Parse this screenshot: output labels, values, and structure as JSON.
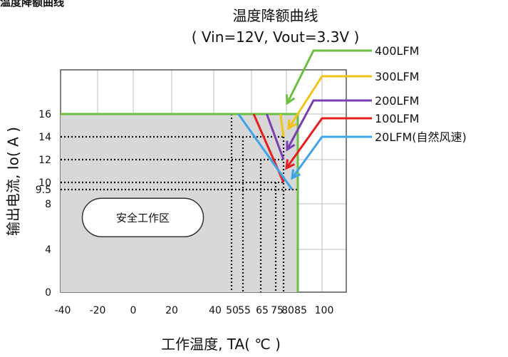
{
  "corner_text": "温度降额曲线",
  "chart_data": {
    "type": "line",
    "title": "温度降额曲线",
    "subtitle": "( Vin=12V, Vout=3.3V )",
    "xlabel": "工作温度, TA( ℃ )",
    "ylabel": "输出电流, Io( A )",
    "x_ticks": [
      -40,
      -20,
      0,
      20,
      40,
      50,
      55,
      65,
      75,
      80,
      85,
      100
    ],
    "x_tick_labels": [
      "-40",
      "-20",
      "0",
      "20",
      "40",
      "50",
      "55",
      "65",
      "75",
      "80",
      "85",
      "100"
    ],
    "y_ticks": [
      0,
      4,
      8,
      9.5,
      10,
      12,
      14,
      16
    ],
    "y_tick_labels": [
      "0",
      "4",
      "8",
      "9.5",
      "10",
      "12",
      "14",
      "16"
    ],
    "xlim": [
      -45,
      110
    ],
    "ylim": [
      0,
      20
    ],
    "grid": true,
    "colors": {
      "20LFM(自然风速)": "#3fa3e8",
      "100LFM": "#e51f1f",
      "200LFM": "#7a3fb0",
      "300LFM": "#f0c419",
      "400LFM": "#6cbf3f",
      "shade": "#d8d8d8"
    },
    "series": [
      {
        "name": "400LFM",
        "color": "#6cbf3f",
        "x": [
          -45,
          85,
          85
        ],
        "y": [
          16,
          16,
          0
        ]
      },
      {
        "name": "300LFM",
        "color": "#f0c419",
        "x": [
          78,
          80
        ],
        "y": [
          16,
          14
        ]
      },
      {
        "name": "200LFM",
        "color": "#7a3fb0",
        "x": [
          69,
          80
        ],
        "y": [
          16,
          12
        ]
      },
      {
        "name": "100LFM",
        "color": "#e51f1f",
        "x": [
          61,
          80
        ],
        "y": [
          16,
          10
        ]
      },
      {
        "name": "20LFM(自然风速)",
        "color": "#3fa3e8",
        "x": [
          53,
          83
        ],
        "y": [
          16,
          9.5
        ]
      }
    ],
    "legend": [
      "400LFM",
      "300LFM",
      "200LFM",
      "100LFM",
      "20LFM(自然风速)"
    ],
    "legend_position": "top-right",
    "annotations": [
      {
        "text": "安全工作区",
        "x": 5,
        "y": 6.8
      }
    ]
  }
}
